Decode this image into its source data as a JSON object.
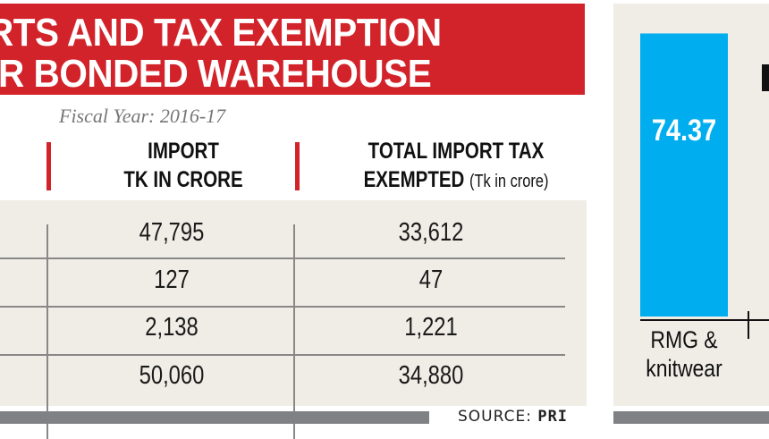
{
  "title": {
    "line1": "RTS AND TAX EXEMPTION",
    "line2": "R BONDED WAREHOUSE"
  },
  "subtitle": "Fiscal Year: 2016-17",
  "table": {
    "headers": [
      {
        "line1": "IMPORT",
        "line2": "TK IN CRORE",
        "note": ""
      },
      {
        "line1": "TOTAL IMPORT TAX",
        "line2": "EXEMPTED",
        "note": "(Tk in crore)"
      }
    ],
    "rows": [
      {
        "import": "47,795",
        "exempted": "33,612"
      },
      {
        "import": "127",
        "exempted": "47"
      },
      {
        "import": "2,138",
        "exempted": "1,221"
      },
      {
        "import": "50,060",
        "exempted": "34,880"
      }
    ]
  },
  "source": {
    "label": "SOURCE:",
    "value": "PRI"
  },
  "colors": {
    "title_red": "#d2232a",
    "bar_blue": "#00aeef",
    "panel_bg": "#f0ede6",
    "footer_gray": "#808185"
  },
  "chart_data": {
    "type": "bar",
    "title": "",
    "xlabel": "",
    "ylabel": "",
    "categories": [
      "RMG & knitwear"
    ],
    "category_lines": [
      [
        "RMG &",
        "knitwear"
      ]
    ],
    "values": [
      74.37
    ],
    "value_labels": [
      "74.37"
    ],
    "ylim": [
      0,
      78
    ],
    "grid": false,
    "legend": "none"
  }
}
